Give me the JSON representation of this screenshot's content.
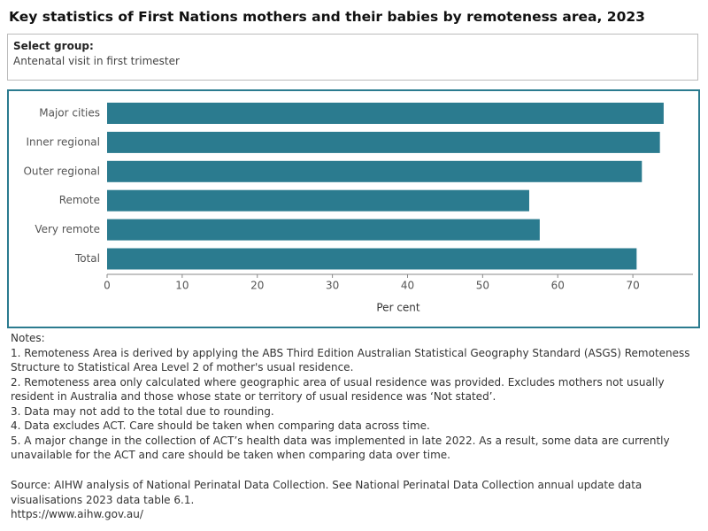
{
  "chart_data": {
    "type": "bar",
    "orientation": "horizontal",
    "title": "Key statistics of First Nations mothers and their babies by remoteness area, 2023",
    "categories": [
      "Major cities",
      "Inner regional",
      "Outer regional",
      "Remote",
      "Very remote",
      "Total"
    ],
    "values": [
      74.1,
      73.6,
      71.2,
      56.2,
      57.6,
      70.5
    ],
    "color": "#2b7b8f",
    "xlim": [
      0,
      78
    ],
    "xticks": [
      0,
      10,
      20,
      30,
      40,
      50,
      60,
      70
    ],
    "xlabel": "Per cent",
    "grid": false
  },
  "filter": {
    "label": "Select group:",
    "value": "Antenatal visit in first trimester"
  },
  "notes": {
    "heading": "Notes:",
    "items": [
      "1. Remoteness Area is derived by applying the ABS Third Edition Australian Statistical Geography Standard (ASGS) Remoteness Structure to Statistical Area Level 2 of mother's usual residence.",
      "2. Remoteness area only calculated where geographic area of usual residence was provided. Excludes mothers not usually resident in Australia and those whose state or territory of usual residence was ‘Not stated’.",
      "3. Data may not add to the total due to rounding.",
      "4. Data excludes ACT. Care should be taken when comparing data across time.",
      "5. A major change in the collection of ACT’s health data was implemented in late 2022. As a result, some data are currently unavailable for the ACT and care should be taken when comparing data over time."
    ]
  },
  "source": {
    "text": "Source: AIHW analysis of National Perinatal Data Collection. See National Perinatal Data Collection annual update data visualisations 2023 data table 6.1.",
    "url": "https://www.aihw.gov.au/"
  }
}
